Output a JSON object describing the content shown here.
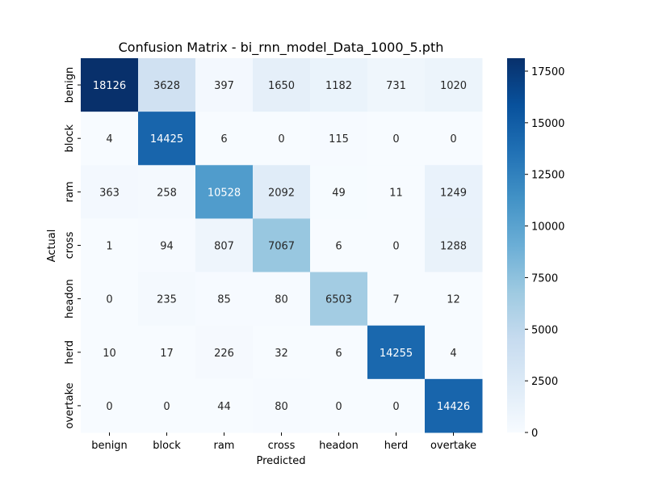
{
  "chart_data": {
    "type": "heatmap",
    "title": "Confusion Matrix - bi_rnn_model_Data_1000_5.pth",
    "xlabel": "Predicted",
    "ylabel": "Actual",
    "x_categories": [
      "benign",
      "block",
      "ram",
      "cross",
      "headon",
      "herd",
      "overtake"
    ],
    "y_categories": [
      "benign",
      "block",
      "ram",
      "cross",
      "headon",
      "herd",
      "overtake"
    ],
    "values": [
      [
        18126,
        3628,
        397,
        1650,
        1182,
        731,
        1020
      ],
      [
        4,
        14425,
        6,
        0,
        115,
        0,
        0
      ],
      [
        363,
        258,
        10528,
        2092,
        49,
        11,
        1249
      ],
      [
        1,
        94,
        807,
        7067,
        6,
        0,
        1288
      ],
      [
        0,
        235,
        85,
        80,
        6503,
        7,
        12
      ],
      [
        10,
        17,
        226,
        32,
        6,
        14255,
        4
      ],
      [
        0,
        0,
        44,
        80,
        0,
        0,
        14426
      ]
    ],
    "colorscale": "Blues",
    "color_range": [
      0,
      18126
    ],
    "colorbar_ticks": [
      0,
      2500,
      5000,
      7500,
      10000,
      12500,
      15000,
      17500
    ]
  }
}
